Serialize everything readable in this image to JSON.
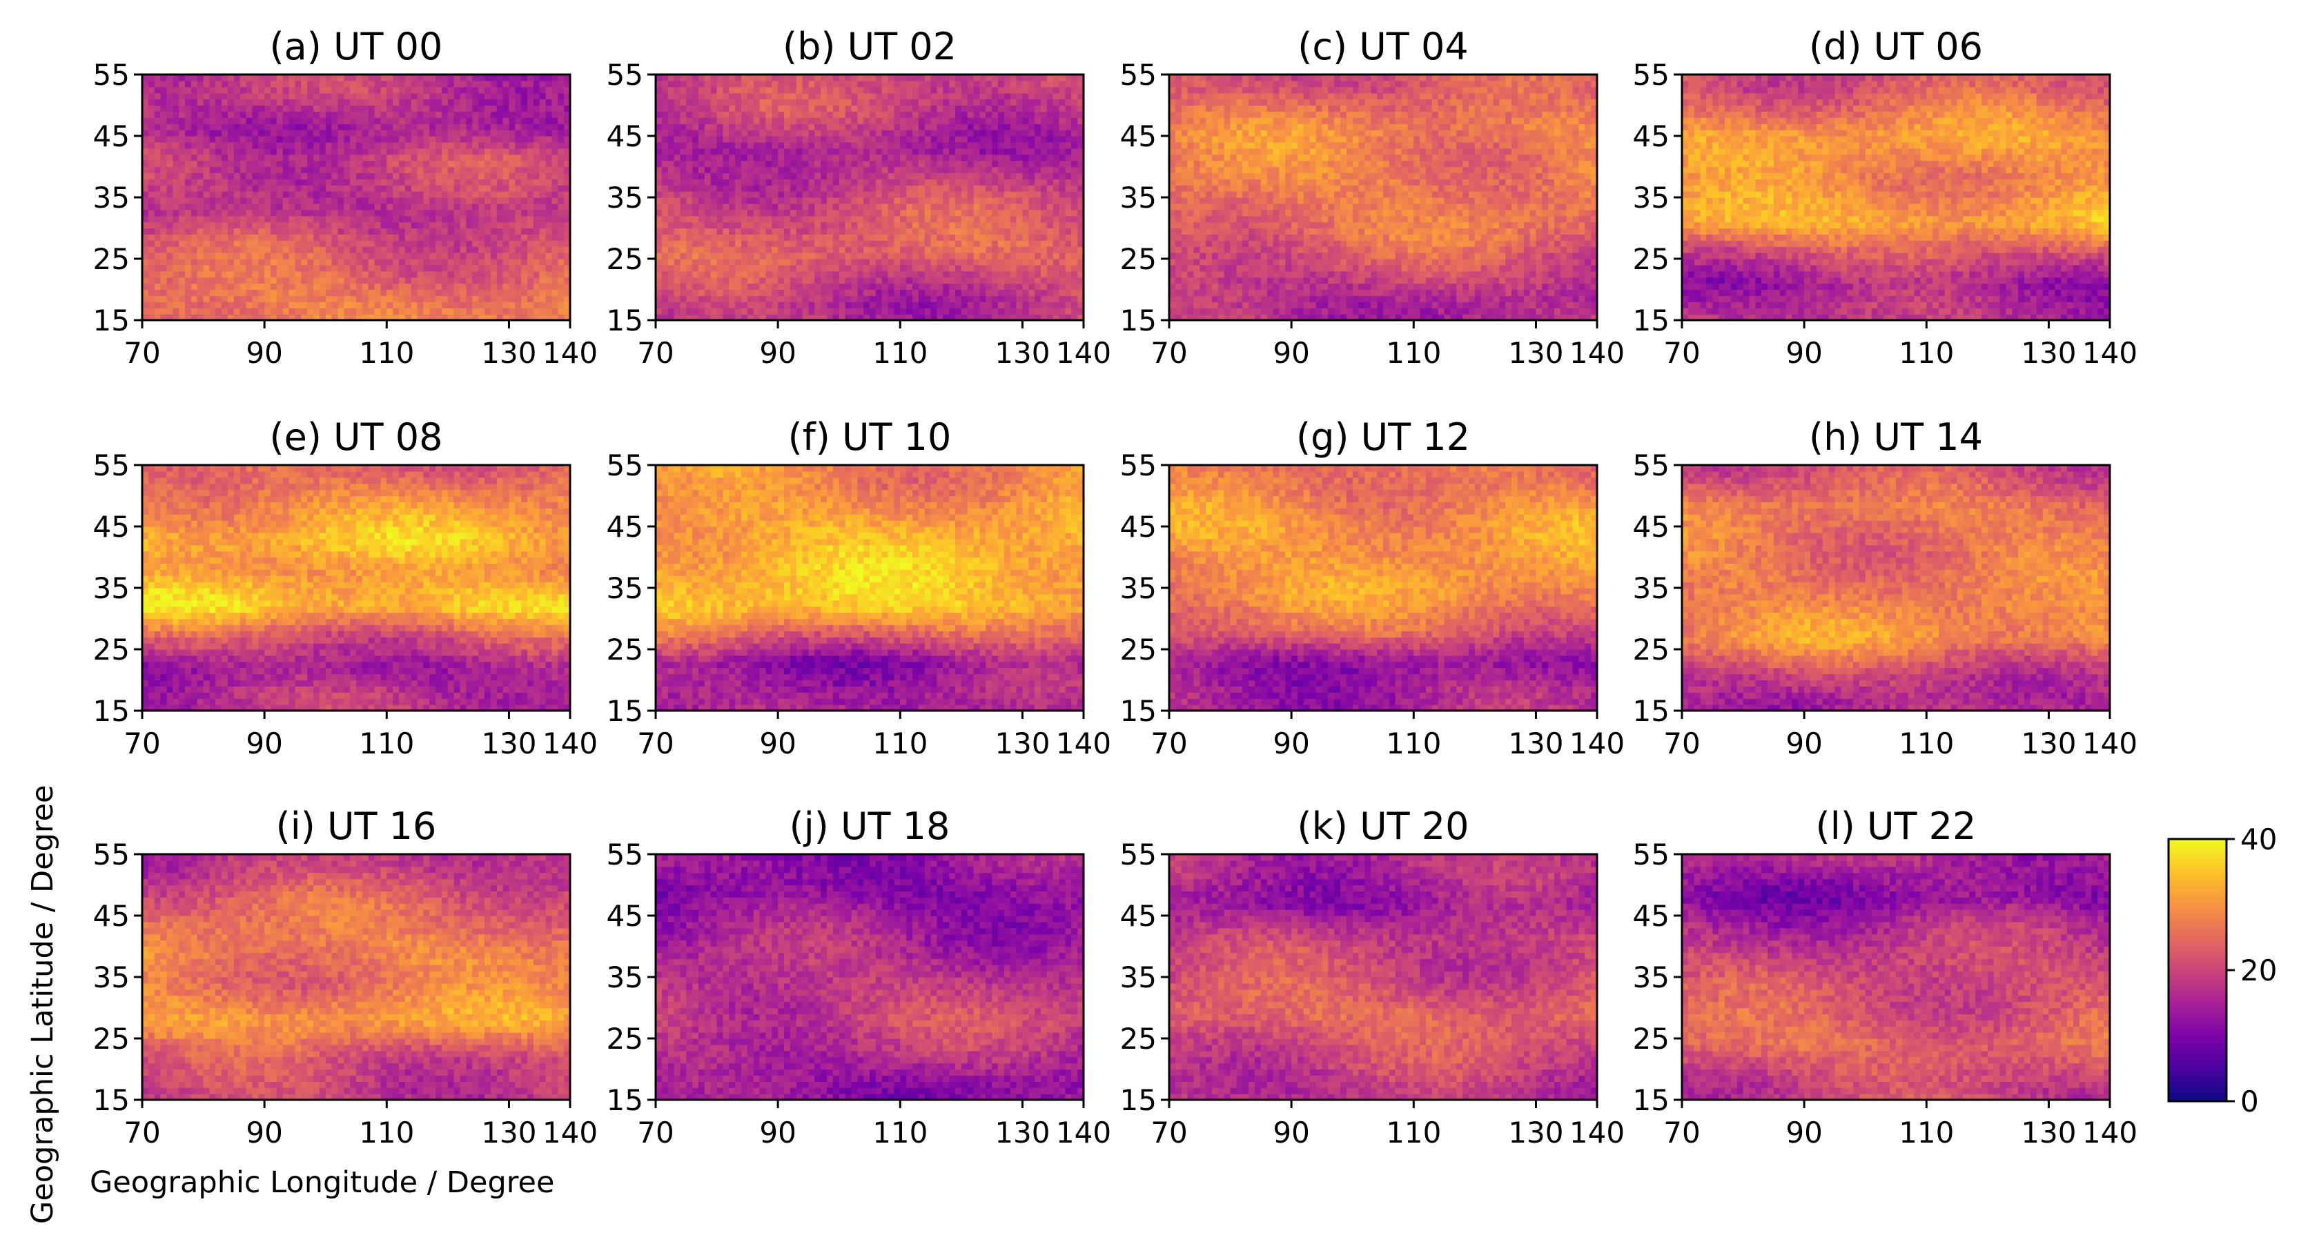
{
  "figure": {
    "xlabel": "Geographic Longitude / Degree",
    "ylabel": "Geographic Latitude / Degree"
  },
  "colorbar": {
    "colormap": "plasma",
    "min": 0,
    "max": 40,
    "ticks": [
      0,
      20,
      40
    ]
  },
  "chart_data": [
    {
      "type": "heatmap",
      "title": "(a) UT 00",
      "xticks": [
        70,
        90,
        110,
        130,
        140
      ],
      "yticks": [
        15,
        25,
        35,
        45,
        55
      ],
      "xlim": [
        70,
        140
      ],
      "ylim": [
        15,
        55
      ],
      "zrange": [
        0,
        40
      ],
      "mean_value": 19,
      "bands": [
        {
          "lat": 18,
          "v": 27
        },
        {
          "lat": 27,
          "v": 22
        },
        {
          "lat": 33,
          "v": 17
        },
        {
          "lat": 41,
          "v": 20
        },
        {
          "lat": 46,
          "v": 15
        },
        {
          "lat": 52,
          "v": 18
        }
      ]
    },
    {
      "type": "heatmap",
      "title": "(b) UT 02",
      "xticks": [
        70,
        90,
        110,
        130,
        140
      ],
      "yticks": [
        15,
        25,
        35,
        45,
        55
      ],
      "xlim": [
        70,
        140
      ],
      "ylim": [
        15,
        55
      ],
      "zrange": [
        0,
        40
      ],
      "mean_value": 19,
      "bands": [
        {
          "lat": 18,
          "v": 17
        },
        {
          "lat": 26,
          "v": 24
        },
        {
          "lat": 34,
          "v": 21
        },
        {
          "lat": 43,
          "v": 15
        },
        {
          "lat": 50,
          "v": 20
        }
      ]
    },
    {
      "type": "heatmap",
      "title": "(c) UT 04",
      "xticks": [
        70,
        90,
        110,
        130,
        140
      ],
      "yticks": [
        15,
        25,
        35,
        45,
        55
      ],
      "xlim": [
        70,
        140
      ],
      "ylim": [
        15,
        55
      ],
      "zrange": [
        0,
        40
      ],
      "mean_value": 24,
      "bands": [
        {
          "lat": 18,
          "v": 16
        },
        {
          "lat": 23,
          "v": 20
        },
        {
          "lat": 30,
          "v": 26
        },
        {
          "lat": 38,
          "v": 27
        },
        {
          "lat": 46,
          "v": 28
        },
        {
          "lat": 53,
          "v": 22
        }
      ]
    },
    {
      "type": "heatmap",
      "title": "(d) UT 06",
      "xticks": [
        70,
        90,
        110,
        130,
        140
      ],
      "yticks": [
        15,
        25,
        35,
        45,
        55
      ],
      "xlim": [
        70,
        140
      ],
      "ylim": [
        15,
        55
      ],
      "zrange": [
        0,
        40
      ],
      "mean_value": 26,
      "bands": [
        {
          "lat": 17,
          "v": 17
        },
        {
          "lat": 21,
          "v": 14
        },
        {
          "lat": 26,
          "v": 22
        },
        {
          "lat": 31,
          "v": 33
        },
        {
          "lat": 38,
          "v": 28
        },
        {
          "lat": 45,
          "v": 31
        },
        {
          "lat": 53,
          "v": 22
        }
      ]
    },
    {
      "type": "heatmap",
      "title": "(e) UT 08",
      "xticks": [
        70,
        90,
        110,
        130,
        140
      ],
      "yticks": [
        15,
        25,
        35,
        45,
        55
      ],
      "xlim": [
        70,
        140
      ],
      "ylim": [
        15,
        55
      ],
      "zrange": [
        0,
        40
      ],
      "mean_value": 27,
      "bands": [
        {
          "lat": 17,
          "v": 17
        },
        {
          "lat": 22,
          "v": 14
        },
        {
          "lat": 27,
          "v": 22
        },
        {
          "lat": 32,
          "v": 36
        },
        {
          "lat": 38,
          "v": 30
        },
        {
          "lat": 43,
          "v": 34
        },
        {
          "lat": 50,
          "v": 28
        },
        {
          "lat": 54,
          "v": 24
        }
      ]
    },
    {
      "type": "heatmap",
      "title": "(f) UT 10",
      "xticks": [
        70,
        90,
        110,
        130,
        140
      ],
      "yticks": [
        15,
        25,
        35,
        45,
        55
      ],
      "xlim": [
        70,
        140
      ],
      "ylim": [
        15,
        55
      ],
      "zrange": [
        0,
        40
      ],
      "mean_value": 27,
      "bands": [
        {
          "lat": 18,
          "v": 15
        },
        {
          "lat": 23,
          "v": 13
        },
        {
          "lat": 28,
          "v": 26
        },
        {
          "lat": 32,
          "v": 35
        },
        {
          "lat": 39,
          "v": 34
        },
        {
          "lat": 45,
          "v": 32
        },
        {
          "lat": 52,
          "v": 28
        }
      ]
    },
    {
      "type": "heatmap",
      "title": "(g) UT 12",
      "xticks": [
        70,
        90,
        110,
        130,
        140
      ],
      "yticks": [
        15,
        25,
        35,
        45,
        55
      ],
      "xlim": [
        70,
        140
      ],
      "ylim": [
        15,
        55
      ],
      "zrange": [
        0,
        40
      ],
      "mean_value": 25,
      "bands": [
        {
          "lat": 18,
          "v": 15
        },
        {
          "lat": 23,
          "v": 13
        },
        {
          "lat": 28,
          "v": 24
        },
        {
          "lat": 34,
          "v": 30
        },
        {
          "lat": 40,
          "v": 30
        },
        {
          "lat": 45,
          "v": 31
        },
        {
          "lat": 52,
          "v": 26
        }
      ]
    },
    {
      "type": "heatmap",
      "title": "(h) UT 14",
      "xticks": [
        70,
        90,
        110,
        130,
        140
      ],
      "yticks": [
        15,
        25,
        35,
        45,
        55
      ],
      "xlim": [
        70,
        140
      ],
      "ylim": [
        15,
        55
      ],
      "zrange": [
        0,
        40
      ],
      "mean_value": 24,
      "bands": [
        {
          "lat": 17,
          "v": 16
        },
        {
          "lat": 21,
          "v": 19
        },
        {
          "lat": 27,
          "v": 30
        },
        {
          "lat": 34,
          "v": 27
        },
        {
          "lat": 41,
          "v": 26
        },
        {
          "lat": 48,
          "v": 27
        },
        {
          "lat": 54,
          "v": 21
        }
      ]
    },
    {
      "type": "heatmap",
      "title": "(i) UT 16",
      "xticks": [
        70,
        90,
        110,
        130,
        140
      ],
      "yticks": [
        15,
        25,
        35,
        45,
        55
      ],
      "xlim": [
        70,
        140
      ],
      "ylim": [
        15,
        55
      ],
      "zrange": [
        0,
        40
      ],
      "mean_value": 24,
      "bands": [
        {
          "lat": 17,
          "v": 19
        },
        {
          "lat": 22,
          "v": 21
        },
        {
          "lat": 28,
          "v": 31
        },
        {
          "lat": 34,
          "v": 26
        },
        {
          "lat": 40,
          "v": 28
        },
        {
          "lat": 47,
          "v": 24
        },
        {
          "lat": 53,
          "v": 18
        }
      ]
    },
    {
      "type": "heatmap",
      "title": "(j) UT 18",
      "xticks": [
        70,
        90,
        110,
        130,
        140
      ],
      "yticks": [
        15,
        25,
        35,
        45,
        55
      ],
      "xlim": [
        70,
        140
      ],
      "ylim": [
        15,
        55
      ],
      "zrange": [
        0,
        40
      ],
      "mean_value": 15,
      "bands": [
        {
          "lat": 17,
          "v": 12
        },
        {
          "lat": 22,
          "v": 16
        },
        {
          "lat": 28,
          "v": 20
        },
        {
          "lat": 35,
          "v": 18
        },
        {
          "lat": 42,
          "v": 15
        },
        {
          "lat": 49,
          "v": 11
        },
        {
          "lat": 54,
          "v": 13
        }
      ]
    },
    {
      "type": "heatmap",
      "title": "(k) UT 20",
      "xticks": [
        70,
        90,
        110,
        130,
        140
      ],
      "yticks": [
        15,
        25,
        35,
        45,
        55
      ],
      "xlim": [
        70,
        140
      ],
      "ylim": [
        15,
        55
      ],
      "zrange": [
        0,
        40
      ],
      "mean_value": 20,
      "bands": [
        {
          "lat": 17,
          "v": 17
        },
        {
          "lat": 23,
          "v": 21
        },
        {
          "lat": 29,
          "v": 25
        },
        {
          "lat": 35,
          "v": 21
        },
        {
          "lat": 41,
          "v": 19
        },
        {
          "lat": 47,
          "v": 13
        },
        {
          "lat": 53,
          "v": 17
        }
      ]
    },
    {
      "type": "heatmap",
      "title": "(l) UT 22",
      "xticks": [
        70,
        90,
        110,
        130,
        140
      ],
      "yticks": [
        15,
        25,
        35,
        45,
        55
      ],
      "xlim": [
        70,
        140
      ],
      "ylim": [
        15,
        55
      ],
      "zrange": [
        0,
        40
      ],
      "mean_value": 20,
      "bands": [
        {
          "lat": 17,
          "v": 19
        },
        {
          "lat": 24,
          "v": 25
        },
        {
          "lat": 31,
          "v": 22
        },
        {
          "lat": 37,
          "v": 20
        },
        {
          "lat": 44,
          "v": 16
        },
        {
          "lat": 48,
          "v": 11
        },
        {
          "lat": 54,
          "v": 16
        }
      ]
    }
  ]
}
